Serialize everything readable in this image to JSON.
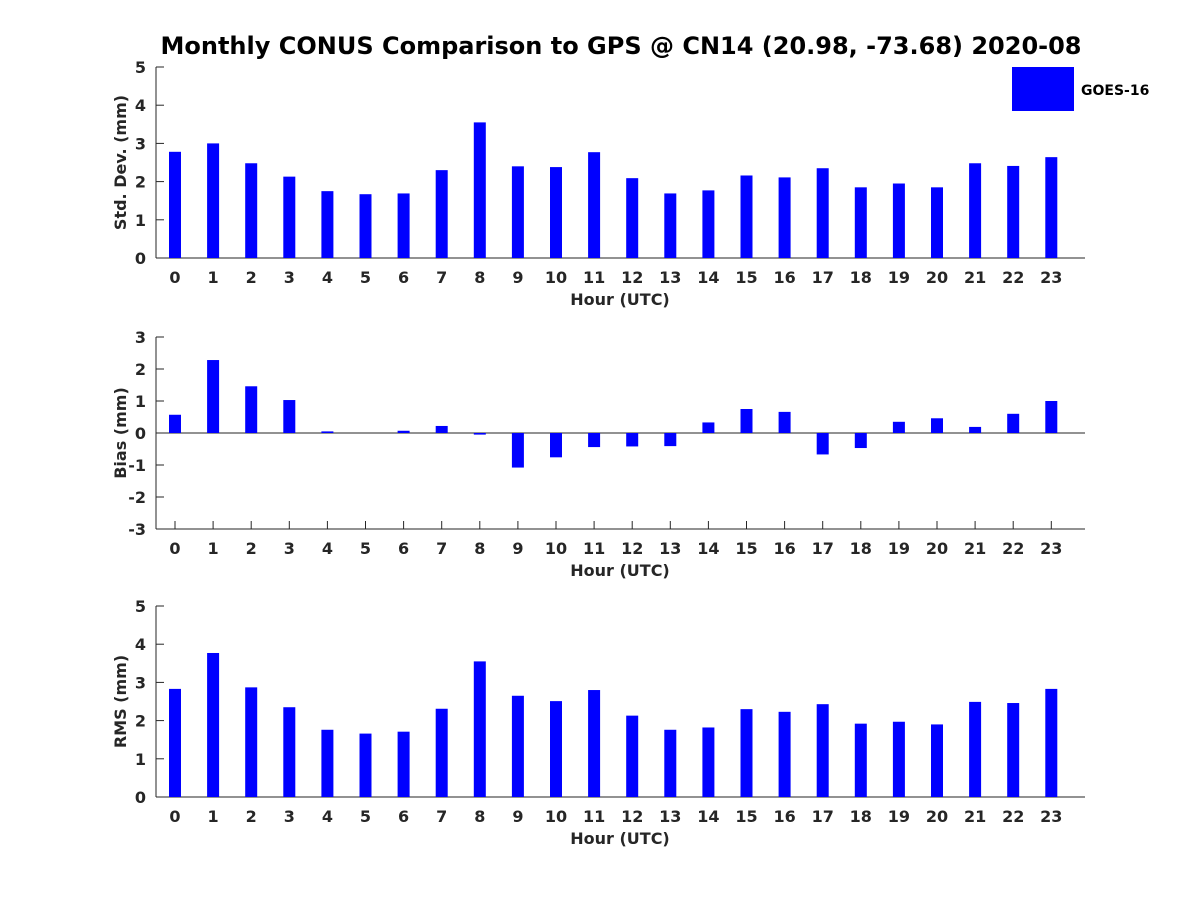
{
  "title": "Monthly CONUS Comparison to GPS @ CN14 (20.98, -73.68) 2020-08",
  "legend": {
    "label": "GOES-16",
    "color": "#0000ff"
  },
  "chart_data": [
    {
      "type": "bar",
      "title": "Monthly CONUS Comparison to GPS @ CN14 (20.98, -73.68) 2020-08",
      "xlabel": "Hour (UTC)",
      "ylabel": "Std. Dev. (mm)",
      "ylim": [
        0,
        5
      ],
      "yticks": [
        0,
        1,
        2,
        3,
        4,
        5
      ],
      "categories": [
        "0",
        "1",
        "2",
        "3",
        "4",
        "5",
        "6",
        "7",
        "8",
        "9",
        "10",
        "11",
        "12",
        "13",
        "14",
        "15",
        "16",
        "17",
        "18",
        "19",
        "20",
        "21",
        "22",
        "23"
      ],
      "series": [
        {
          "name": "GOES-16",
          "values": [
            2.78,
            3.0,
            2.48,
            2.13,
            1.75,
            1.67,
            1.69,
            2.3,
            3.55,
            2.4,
            2.38,
            2.77,
            2.09,
            1.69,
            1.77,
            2.16,
            2.11,
            2.35,
            1.85,
            1.95,
            1.85,
            2.48,
            2.41,
            2.64
          ]
        }
      ]
    },
    {
      "type": "bar",
      "title": "",
      "xlabel": "Hour (UTC)",
      "ylabel": "Bias (mm)",
      "ylim": [
        -3,
        3
      ],
      "yticks": [
        -3,
        -2,
        -1,
        0,
        1,
        2,
        3
      ],
      "categories": [
        "0",
        "1",
        "2",
        "3",
        "4",
        "5",
        "6",
        "7",
        "8",
        "9",
        "10",
        "11",
        "12",
        "13",
        "14",
        "15",
        "16",
        "17",
        "18",
        "19",
        "20",
        "21",
        "22",
        "23"
      ],
      "series": [
        {
          "name": "GOES-16",
          "values": [
            0.57,
            2.28,
            1.46,
            1.03,
            0.05,
            0.0,
            0.07,
            0.22,
            -0.05,
            -1.08,
            -0.76,
            -0.44,
            -0.42,
            -0.41,
            0.33,
            0.75,
            0.66,
            -0.67,
            -0.47,
            0.35,
            0.46,
            0.19,
            0.6,
            1.0
          ]
        }
      ]
    },
    {
      "type": "bar",
      "title": "",
      "xlabel": "Hour (UTC)",
      "ylabel": "RMS (mm)",
      "ylim": [
        0,
        5
      ],
      "yticks": [
        0,
        1,
        2,
        3,
        4,
        5
      ],
      "categories": [
        "0",
        "1",
        "2",
        "3",
        "4",
        "5",
        "6",
        "7",
        "8",
        "9",
        "10",
        "11",
        "12",
        "13",
        "14",
        "15",
        "16",
        "17",
        "18",
        "19",
        "20",
        "21",
        "22",
        "23"
      ],
      "series": [
        {
          "name": "GOES-16",
          "values": [
            2.83,
            3.77,
            2.87,
            2.35,
            1.76,
            1.66,
            1.71,
            2.31,
            3.55,
            2.65,
            2.51,
            2.8,
            2.13,
            1.76,
            1.82,
            2.3,
            2.23,
            2.43,
            1.92,
            1.97,
            1.9,
            2.49,
            2.46,
            2.83
          ]
        }
      ]
    }
  ]
}
